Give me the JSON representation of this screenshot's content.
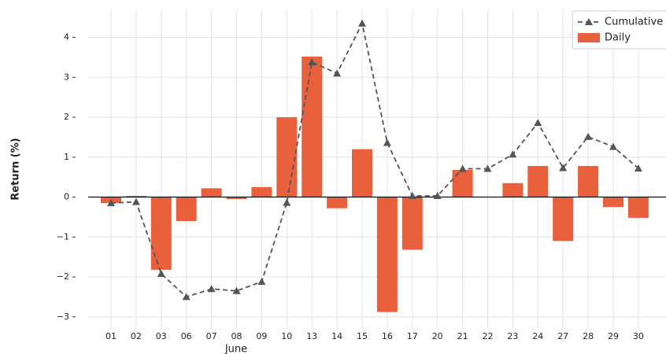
{
  "chart_data": {
    "type": "bar",
    "x_label": "June",
    "y_label": "Return (%)",
    "categories": [
      "01",
      "02",
      "03",
      "06",
      "07",
      "08",
      "09",
      "10",
      "13",
      "14",
      "15",
      "16",
      "17",
      "20",
      "21",
      "22",
      "23",
      "24",
      "27",
      "28",
      "29",
      "30"
    ],
    "series": [
      {
        "name": "Cumulative",
        "type": "line",
        "color": "#555555",
        "values": [
          -0.15,
          -0.12,
          -1.92,
          -2.5,
          -2.3,
          -2.35,
          -2.12,
          -0.14,
          3.38,
          3.1,
          4.35,
          1.36,
          0.03,
          0.03,
          0.71,
          0.71,
          1.07,
          1.86,
          0.73,
          1.51,
          1.26,
          0.72
        ]
      },
      {
        "name": "Daily",
        "type": "bar",
        "color": "#e8603c",
        "values": [
          -0.15,
          0.03,
          -1.82,
          -0.6,
          0.22,
          -0.05,
          0.25,
          2.0,
          3.52,
          -0.28,
          1.2,
          -2.88,
          -1.32,
          0,
          0.68,
          0,
          0.35,
          0.78,
          -1.1,
          0.78,
          -0.25,
          -0.52
        ]
      }
    ],
    "ylim": [
      -3.3,
      4.7
    ],
    "yticks": [
      {
        "value": -3,
        "label": "−3"
      },
      {
        "value": -2,
        "label": "−2"
      },
      {
        "value": -1,
        "label": "−1"
      },
      0,
      1,
      2,
      3,
      4
    ],
    "grid": true,
    "legend": "upper right"
  }
}
